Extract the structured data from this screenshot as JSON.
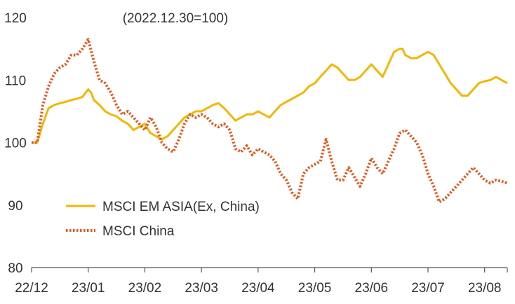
{
  "chart_data": {
    "type": "line",
    "note": "(2022.12.30=100)",
    "ylim": [
      80,
      120
    ],
    "yticks": [
      80,
      90,
      100,
      110,
      120
    ],
    "x_ticks": [
      "22/12",
      "23/01",
      "23/02",
      "23/03",
      "23/04",
      "23/05",
      "23/06",
      "23/07",
      "23/08"
    ],
    "x_range": [
      0,
      8.4
    ],
    "series": [
      {
        "name": "MSCI EM ASIA(Ex, China)",
        "color": "#F2B705",
        "style": "solid",
        "x": [
          0,
          0.1,
          0.2,
          0.3,
          0.4,
          0.5,
          0.6,
          0.7,
          0.8,
          0.9,
          1.0,
          1.05,
          1.1,
          1.2,
          1.3,
          1.4,
          1.5,
          1.6,
          1.7,
          1.8,
          1.9,
          2.0,
          2.1,
          2.2,
          2.3,
          2.4,
          2.5,
          2.6,
          2.7,
          2.8,
          2.9,
          3.0,
          3.1,
          3.2,
          3.3,
          3.4,
          3.5,
          3.6,
          3.7,
          3.8,
          3.9,
          4.0,
          4.2,
          4.4,
          4.6,
          4.8,
          4.9,
          5.0,
          5.1,
          5.2,
          5.3,
          5.4,
          5.5,
          5.6,
          5.7,
          5.8,
          5.9,
          6.0,
          6.1,
          6.2,
          6.3,
          6.4,
          6.5,
          6.55,
          6.6,
          6.7,
          6.8,
          6.9,
          7.0,
          7.1,
          7.2,
          7.3,
          7.4,
          7.5,
          7.6,
          7.7,
          7.8,
          7.9,
          8.0,
          8.1,
          8.2,
          8.3,
          8.4
        ],
        "values": [
          100,
          100,
          103,
          105.5,
          106,
          106.3,
          106.5,
          106.8,
          107,
          107.3,
          108.5,
          108,
          106.8,
          106,
          105,
          104.5,
          104.2,
          103.5,
          103,
          102,
          102.5,
          103,
          101.5,
          101,
          100.5,
          101,
          102,
          103,
          104,
          104.5,
          105,
          105,
          105.5,
          106,
          106.3,
          105.5,
          104.5,
          103.5,
          104,
          104.5,
          104.5,
          105,
          104,
          106,
          107,
          108,
          109,
          109.5,
          110.5,
          111.5,
          112.5,
          112,
          111,
          110,
          110,
          110.5,
          111.5,
          112.5,
          111.5,
          110.5,
          112.5,
          114.5,
          115,
          115,
          114,
          113.5,
          113.5,
          114,
          114.5,
          114,
          112.5,
          111,
          109.5,
          108.5,
          107.5,
          107.5,
          108.5,
          109.5,
          109.8,
          110,
          110.5,
          110,
          109.5
        ]
      },
      {
        "name": "MSCI China",
        "color": "#E05A1E",
        "style": "dotted",
        "x": [
          0,
          0.1,
          0.2,
          0.3,
          0.4,
          0.5,
          0.6,
          0.7,
          0.8,
          0.9,
          1.0,
          1.1,
          1.2,
          1.3,
          1.4,
          1.5,
          1.6,
          1.7,
          1.8,
          1.9,
          2.0,
          2.1,
          2.2,
          2.3,
          2.4,
          2.5,
          2.6,
          2.7,
          2.8,
          2.9,
          3.0,
          3.1,
          3.2,
          3.3,
          3.4,
          3.5,
          3.6,
          3.7,
          3.8,
          3.9,
          4.0,
          4.1,
          4.2,
          4.3,
          4.4,
          4.5,
          4.6,
          4.7,
          4.8,
          4.9,
          5.0,
          5.1,
          5.2,
          5.3,
          5.4,
          5.5,
          5.6,
          5.7,
          5.8,
          5.9,
          6.0,
          6.1,
          6.2,
          6.3,
          6.4,
          6.5,
          6.6,
          6.7,
          6.8,
          6.9,
          7.0,
          7.1,
          7.2,
          7.3,
          7.4,
          7.5,
          7.6,
          7.7,
          7.8,
          7.9,
          8.0,
          8.1,
          8.2,
          8.3,
          8.4
        ],
        "values": [
          100,
          100,
          106,
          109,
          111,
          112,
          112.5,
          114,
          114,
          115,
          116.5,
          113,
          110,
          109.5,
          108,
          106,
          104.5,
          105,
          104,
          103,
          102,
          104,
          102.5,
          100,
          99,
          98.5,
          100.5,
          103,
          104.5,
          104,
          104.5,
          104,
          103,
          102.5,
          103,
          102,
          99,
          98.5,
          99.5,
          98,
          99,
          98.5,
          98,
          97,
          95,
          94,
          92,
          91,
          95,
          96,
          96.5,
          97,
          100.5,
          97,
          94,
          94,
          96,
          94.5,
          93,
          95,
          97.5,
          96,
          95,
          97,
          99,
          101.5,
          102,
          101,
          100,
          98,
          95,
          93,
          90.5,
          91,
          92,
          93,
          94,
          95,
          96,
          95,
          94,
          93.5,
          94,
          93.8,
          93.5
        ]
      }
    ],
    "legend": {
      "placement": "left",
      "entries": [
        "MSCI EM ASIA(Ex, China)",
        "MSCI China"
      ]
    }
  }
}
